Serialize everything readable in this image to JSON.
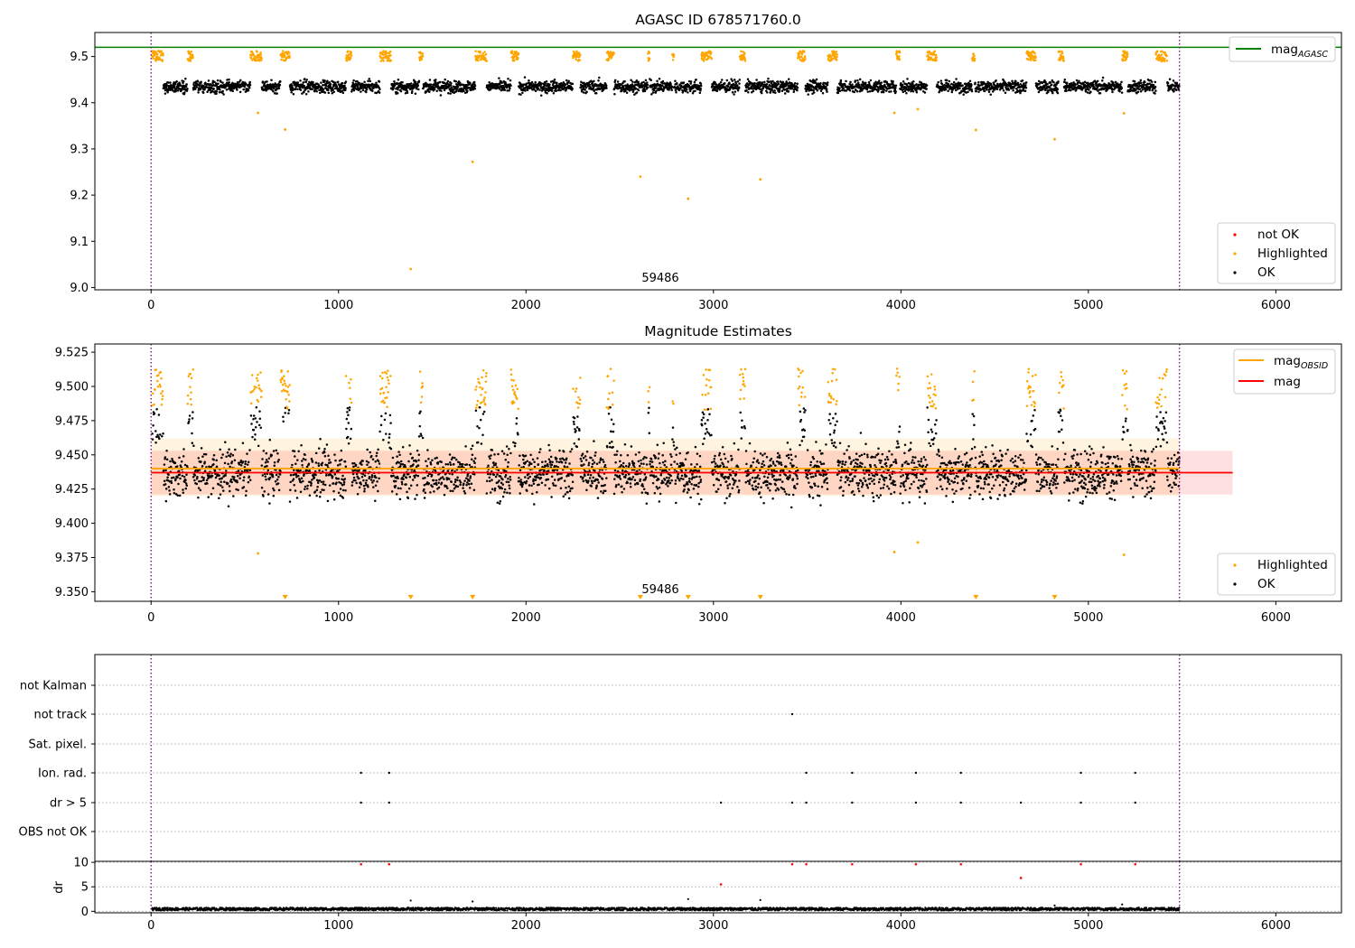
{
  "chart_data": [
    {
      "type": "scatter",
      "title": "AGASC ID 678571760.0",
      "xlim": [
        -300,
        6350
      ],
      "ylim": [
        8.995,
        9.552
      ],
      "xticks": [
        0,
        1000,
        2000,
        3000,
        4000,
        5000,
        6000
      ],
      "yticks": [
        9.0,
        9.1,
        9.2,
        9.3,
        9.4,
        9.5
      ],
      "ytick_labels": [
        "9.0",
        "9.1",
        "9.2",
        "9.3",
        "9.4",
        "9.5"
      ],
      "grid": false,
      "vlines": [
        0,
        5486
      ],
      "annotation": "59486",
      "hline": {
        "name_base": "mag",
        "name_sub": "AGASC",
        "y": 9.52,
        "color": "#008000"
      },
      "legend_top": "top-right",
      "legend_bottom": "bottom-right",
      "series": [
        {
          "name": "not OK",
          "color": "#ff0000",
          "values": []
        },
        {
          "name": "Highlighted",
          "color": "#ffa500",
          "values": []
        },
        {
          "name": "OK",
          "color": "#000000",
          "values": []
        }
      ],
      "outliers": [
        [
          570,
          9.378
        ],
        [
          715,
          9.342
        ],
        [
          1385,
          9.04
        ],
        [
          1715,
          9.272
        ],
        [
          2610,
          9.24
        ],
        [
          2865,
          9.192
        ],
        [
          3250,
          9.234
        ],
        [
          3965,
          9.378
        ],
        [
          4090,
          9.386
        ],
        [
          4400,
          9.341
        ],
        [
          4820,
          9.321
        ],
        [
          5190,
          9.377
        ]
      ],
      "flares": [
        [
          0,
          65
        ],
        [
          195,
          225
        ],
        [
          530,
          590
        ],
        [
          690,
          740
        ],
        [
          1040,
          1070
        ],
        [
          1220,
          1280
        ],
        [
          1430,
          1450
        ],
        [
          1730,
          1790
        ],
        [
          1920,
          1960
        ],
        [
          2250,
          2290
        ],
        [
          2430,
          2470
        ],
        [
          2650,
          2660
        ],
        [
          2780,
          2790
        ],
        [
          2935,
          2990
        ],
        [
          3140,
          3170
        ],
        [
          3450,
          3490
        ],
        [
          3610,
          3660
        ],
        [
          3975,
          3995
        ],
        [
          4140,
          4190
        ],
        [
          4380,
          4395
        ],
        [
          4670,
          4720
        ],
        [
          4840,
          4870
        ],
        [
          5180,
          5210
        ],
        [
          5360,
          5420
        ]
      ]
    },
    {
      "type": "scatter",
      "title": "Magnitude Estimates",
      "xlim": [
        -300,
        6350
      ],
      "ylim": [
        9.343,
        9.531
      ],
      "xticks": [
        0,
        1000,
        2000,
        3000,
        4000,
        5000,
        6000
      ],
      "yticks": [
        9.35,
        9.375,
        9.4,
        9.425,
        9.45,
        9.475,
        9.5,
        9.525
      ],
      "ytick_labels": [
        "9.350",
        "9.375",
        "9.400",
        "9.425",
        "9.450",
        "9.475",
        "9.500",
        "9.525"
      ],
      "grid": false,
      "vlines": [
        0,
        5486
      ],
      "annotation": "59486",
      "lines": [
        {
          "name_base": "mag",
          "name_sub": "OBSID",
          "color": "#ffa500",
          "y": 9.44,
          "band": [
            9.42,
            9.462
          ],
          "x_range": [
            0,
            5486
          ]
        },
        {
          "name_base": "mag",
          "name_sub": "",
          "color": "#ff0000",
          "y": 9.437,
          "band": [
            9.421,
            9.453
          ],
          "x_range": [
            0,
            5770
          ]
        }
      ],
      "down_markers": [
        715,
        1385,
        1715,
        2610,
        2865,
        3250,
        4400,
        4820
      ],
      "series": [
        {
          "name": "Highlighted",
          "color": "#ffa500",
          "values": []
        },
        {
          "name": "OK",
          "color": "#000000",
          "values": []
        }
      ],
      "legend_top": "top-right",
      "legend_bottom": "bottom-right"
    },
    {
      "type": "scatter",
      "title": "",
      "xlim": [
        -300,
        6350
      ],
      "categories": [
        "not Kalman",
        "not track",
        "Sat. pixel.",
        "Ion. rad.",
        "dr > 5",
        "OBS not OK"
      ],
      "flag_points": {
        "not track": [
          3420
        ],
        "Ion. rad.": [
          1120,
          1270,
          3495,
          3740,
          4080,
          4320,
          4960,
          5250
        ],
        "dr > 5": [
          1120,
          1270,
          3040,
          3420,
          3495,
          3740,
          4080,
          4320,
          4640,
          4960,
          5250
        ]
      },
      "vlines": [
        0,
        5486
      ]
    },
    {
      "type": "scatter",
      "title": "",
      "ylabel": "dr",
      "xlim": [
        -300,
        6350
      ],
      "ylim": [
        -0.3,
        10.2
      ],
      "xticks": [
        0,
        1000,
        2000,
        3000,
        4000,
        5000,
        6000
      ],
      "yticks": [
        0,
        5,
        10
      ],
      "ytick_labels": [
        "0",
        "5",
        "10"
      ],
      "vlines": [
        0,
        5486
      ],
      "red_points": [
        [
          1120,
          9.6
        ],
        [
          1270,
          9.6
        ],
        [
          3420,
          9.6
        ],
        [
          3495,
          9.6
        ],
        [
          3740,
          9.6
        ],
        [
          4080,
          9.6
        ],
        [
          4320,
          9.6
        ],
        [
          4640,
          6.8
        ],
        [
          4960,
          9.6
        ],
        [
          5250,
          9.6
        ],
        [
          3040,
          5.5
        ]
      ],
      "black_points": [
        [
          1385,
          2.2
        ],
        [
          1715,
          2.0
        ],
        [
          2865,
          2.5
        ],
        [
          3250,
          2.3
        ],
        [
          5180,
          1.4
        ],
        [
          4820,
          1.2
        ]
      ]
    }
  ]
}
